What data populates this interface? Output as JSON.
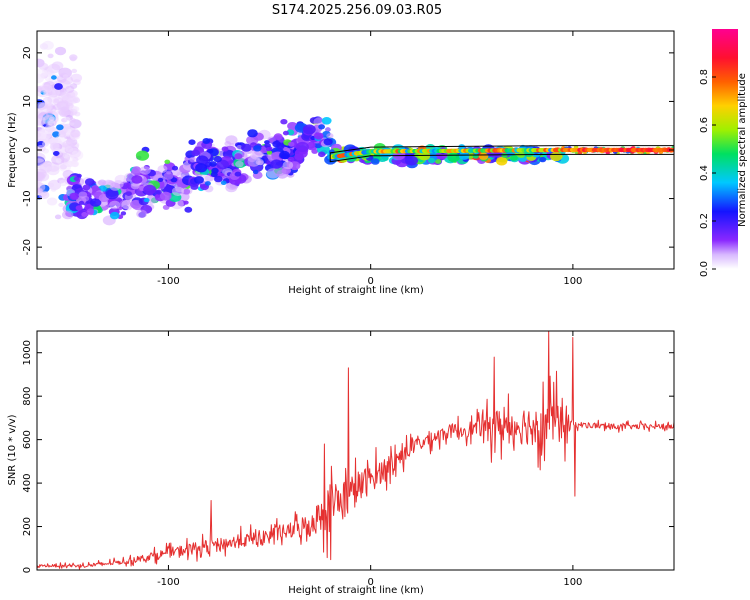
{
  "title": "S174.2025.256.09.03.R05",
  "colors": {
    "signal_line": "#e53030",
    "marker_line": "#000000",
    "axis": "#000000",
    "colormap": [
      "#ffffff",
      "#e7c8ff",
      "#8a28ff",
      "#1414ff",
      "#00c8ff",
      "#00e060",
      "#a0f000",
      "#ffd000",
      "#ff6000",
      "#ff1030",
      "#ff0090"
    ]
  },
  "chart_data": [
    {
      "type": "heatmap",
      "title": "S174.2025.256.09.03.R05",
      "xlabel": "Height of straight line (km)",
      "ylabel": "Frequency (Hz)",
      "xlim": [
        -165,
        150
      ],
      "ylim": [
        -24.5,
        24.5
      ],
      "x_ticks": [
        -100,
        0,
        100
      ],
      "x_tick_labels": [
        "-100",
        "0",
        "100"
      ],
      "y_ticks": [
        -20,
        -10,
        0,
        10,
        20
      ],
      "y_tick_labels": [
        "-20",
        "-10",
        "0",
        "10",
        "20"
      ],
      "colorbar": {
        "label": "Normalized spectral amplitude",
        "range": [
          0,
          1
        ],
        "ticks": [
          0.0,
          0.2,
          0.4,
          0.6,
          0.8
        ],
        "tick_labels": [
          "0.0",
          "0.2",
          "0.4",
          "0.6",
          "0.8"
        ]
      },
      "clusters": [
        {
          "x_range": [
            -165,
            -145
          ],
          "freq_center": 5,
          "freq_spread": 13,
          "amplitude": 0.1,
          "count": 260
        },
        {
          "x_range": [
            -150,
            -120
          ],
          "freq_center": -10,
          "freq_spread": 4,
          "amplitude": 0.22,
          "count": 130
        },
        {
          "x_range": [
            -120,
            -90
          ],
          "freq_center": -7,
          "freq_spread": 4,
          "amplitude": 0.24,
          "count": 130
        },
        {
          "x_range": [
            -90,
            -60
          ],
          "freq_center": -3,
          "freq_spread": 4,
          "amplitude": 0.25,
          "count": 140
        },
        {
          "x_range": [
            -60,
            -35
          ],
          "freq_center": -1,
          "freq_spread": 4,
          "amplitude": 0.26,
          "count": 120
        },
        {
          "x_range": [
            -35,
            -20
          ],
          "freq_center": 3,
          "freq_spread": 3,
          "amplitude": 0.28,
          "count": 70
        },
        {
          "x_range": [
            -20,
            95
          ],
          "freq_center": -1,
          "freq_spread": 1.2,
          "amplitude": 0.5,
          "count": 260
        },
        {
          "x_range": [
            95,
            150
          ],
          "freq_center": 0,
          "freq_spread": 0.5,
          "amplitude": 0.8,
          "count": 110
        }
      ],
      "carrier_line": {
        "x": [
          -20,
          0,
          95,
          150
        ],
        "freq": [
          -1.5,
          -0.3,
          0,
          0
        ]
      }
    },
    {
      "type": "line",
      "xlabel": "Height of straight line (km)",
      "ylabel": "SNR (10 * v/v)",
      "xlim": [
        -165,
        150
      ],
      "ylim": [
        0,
        1100
      ],
      "x_ticks": [
        -100,
        0,
        100
      ],
      "x_tick_labels": [
        "-100",
        "0",
        "100"
      ],
      "y_ticks": [
        0,
        200,
        400,
        600,
        800,
        1000
      ],
      "y_tick_labels": [
        "0",
        "200",
        "400",
        "600",
        "800",
        "1000"
      ],
      "trend": {
        "x": [
          -165,
          -140,
          -120,
          -100,
          -80,
          -60,
          -40,
          -30,
          -20,
          -10,
          0,
          10,
          20,
          30,
          40,
          60,
          80,
          95,
          100,
          120,
          150
        ],
        "snr": [
          20,
          20,
          40,
          80,
          110,
          140,
          180,
          210,
          290,
          350,
          420,
          490,
          560,
          610,
          640,
          660,
          670,
          690,
          670,
          660,
          660
        ]
      },
      "noise_amplitude": {
        "x": [
          -165,
          -120,
          -90,
          -60,
          -40,
          -25,
          -20,
          0,
          20,
          40,
          55,
          60,
          95,
          100,
          150
        ],
        "amp": [
          10,
          25,
          60,
          70,
          80,
          160,
          260,
          140,
          80,
          70,
          90,
          170,
          240,
          30,
          25
        ]
      },
      "spikes": [
        {
          "x": -11,
          "snr": 930
        },
        {
          "x": -23,
          "snr": 580
        },
        {
          "x": -79,
          "snr": 320
        },
        {
          "x": 61,
          "snr": 980
        },
        {
          "x": 88,
          "snr": 1100
        },
        {
          "x": 100,
          "snr": 1070
        },
        {
          "x": 101,
          "snr": 340
        }
      ]
    }
  ]
}
